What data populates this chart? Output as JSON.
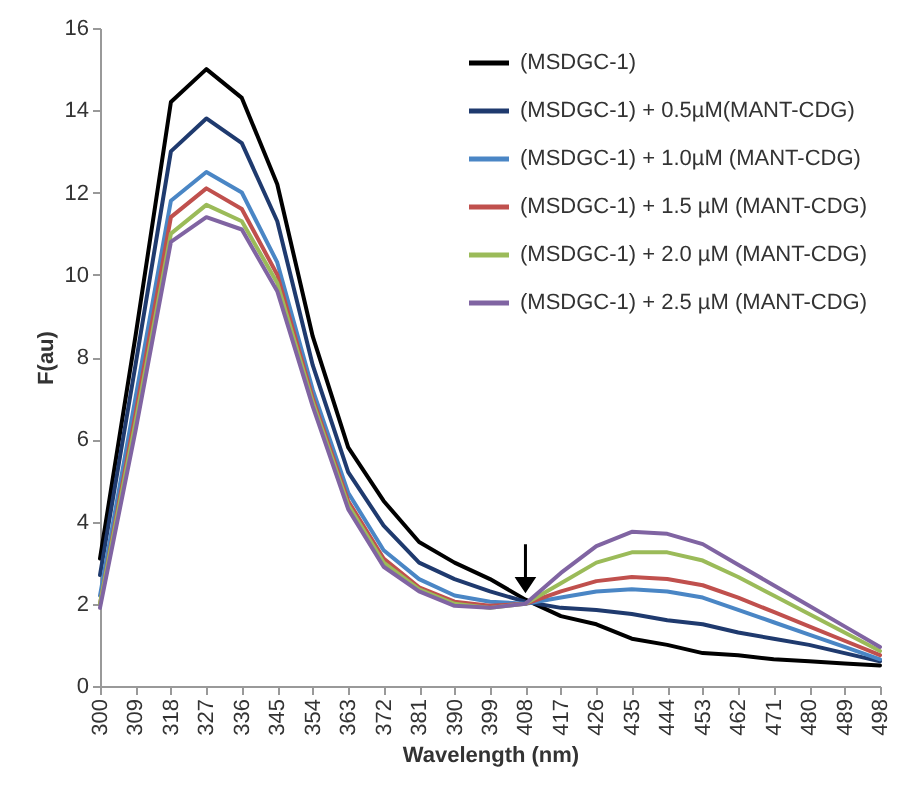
{
  "chart_data": {
    "type": "line",
    "xlabel": "Wavelength (nm)",
    "ylabel": "F(au)",
    "categories": [
      "300",
      "309",
      "318",
      "327",
      "336",
      "345",
      "354",
      "363",
      "372",
      "381",
      "390",
      "399",
      "408",
      "417",
      "426",
      "435",
      "444",
      "453",
      "462",
      "471",
      "480",
      "489",
      "498"
    ],
    "ylim": [
      0,
      16
    ],
    "yticks": [
      0,
      2,
      4,
      6,
      8,
      10,
      12,
      14,
      16
    ],
    "grid": false,
    "legend": "top right",
    "marker": "none",
    "line_style": "solid",
    "series": [
      {
        "name": "(MSDGC-1)",
        "color": "#000000",
        "values": [
          3.1,
          8.5,
          14.2,
          15.0,
          14.3,
          12.2,
          8.5,
          5.8,
          4.5,
          3.5,
          3.0,
          2.6,
          2.1,
          1.7,
          1.5,
          1.15,
          1.0,
          0.8,
          0.75,
          0.65,
          0.6,
          0.55,
          0.5
        ]
      },
      {
        "name": "(MSDGC-1) + 0.5µM(MANT-CDG)",
        "color": "#1f3a6e",
        "values": [
          2.7,
          7.8,
          13.0,
          13.8,
          13.2,
          11.3,
          7.8,
          5.2,
          3.9,
          3.0,
          2.6,
          2.3,
          2.05,
          1.9,
          1.85,
          1.75,
          1.6,
          1.5,
          1.3,
          1.15,
          1.0,
          0.8,
          0.6
        ]
      },
      {
        "name": "(MSDGC-1) + 1.0µM (MANT-CDG)",
        "color": "#4a86c5",
        "values": [
          2.2,
          7.0,
          11.8,
          12.5,
          12.0,
          10.3,
          7.2,
          4.7,
          3.3,
          2.6,
          2.2,
          2.05,
          2.0,
          2.15,
          2.3,
          2.35,
          2.3,
          2.15,
          1.85,
          1.55,
          1.25,
          0.95,
          0.65
        ]
      },
      {
        "name": "(MSDGC-1) + 1.5 µM (MANT-CDG)",
        "color": "#c0504d",
        "values": [
          2.0,
          6.6,
          11.4,
          12.1,
          11.6,
          10.0,
          7.0,
          4.5,
          3.1,
          2.4,
          2.05,
          1.95,
          2.0,
          2.3,
          2.55,
          2.65,
          2.6,
          2.45,
          2.15,
          1.8,
          1.45,
          1.1,
          0.75
        ]
      },
      {
        "name": "(MSDGC-1) + 2.0 µM (MANT-CDG)",
        "color": "#9bbb59",
        "values": [
          2.0,
          6.4,
          11.0,
          11.7,
          11.3,
          9.8,
          6.9,
          4.4,
          3.0,
          2.35,
          2.0,
          1.9,
          2.0,
          2.5,
          3.0,
          3.25,
          3.25,
          3.05,
          2.65,
          2.2,
          1.75,
          1.3,
          0.85
        ]
      },
      {
        "name": "(MSDGC-1) + 2.5 µM (MANT-CDG)",
        "color": "#8064a2",
        "values": [
          1.9,
          6.2,
          10.8,
          11.4,
          11.1,
          9.6,
          6.8,
          4.3,
          2.9,
          2.3,
          1.95,
          1.9,
          2.0,
          2.75,
          3.4,
          3.75,
          3.7,
          3.45,
          2.95,
          2.45,
          1.95,
          1.45,
          0.95
        ]
      }
    ]
  }
}
